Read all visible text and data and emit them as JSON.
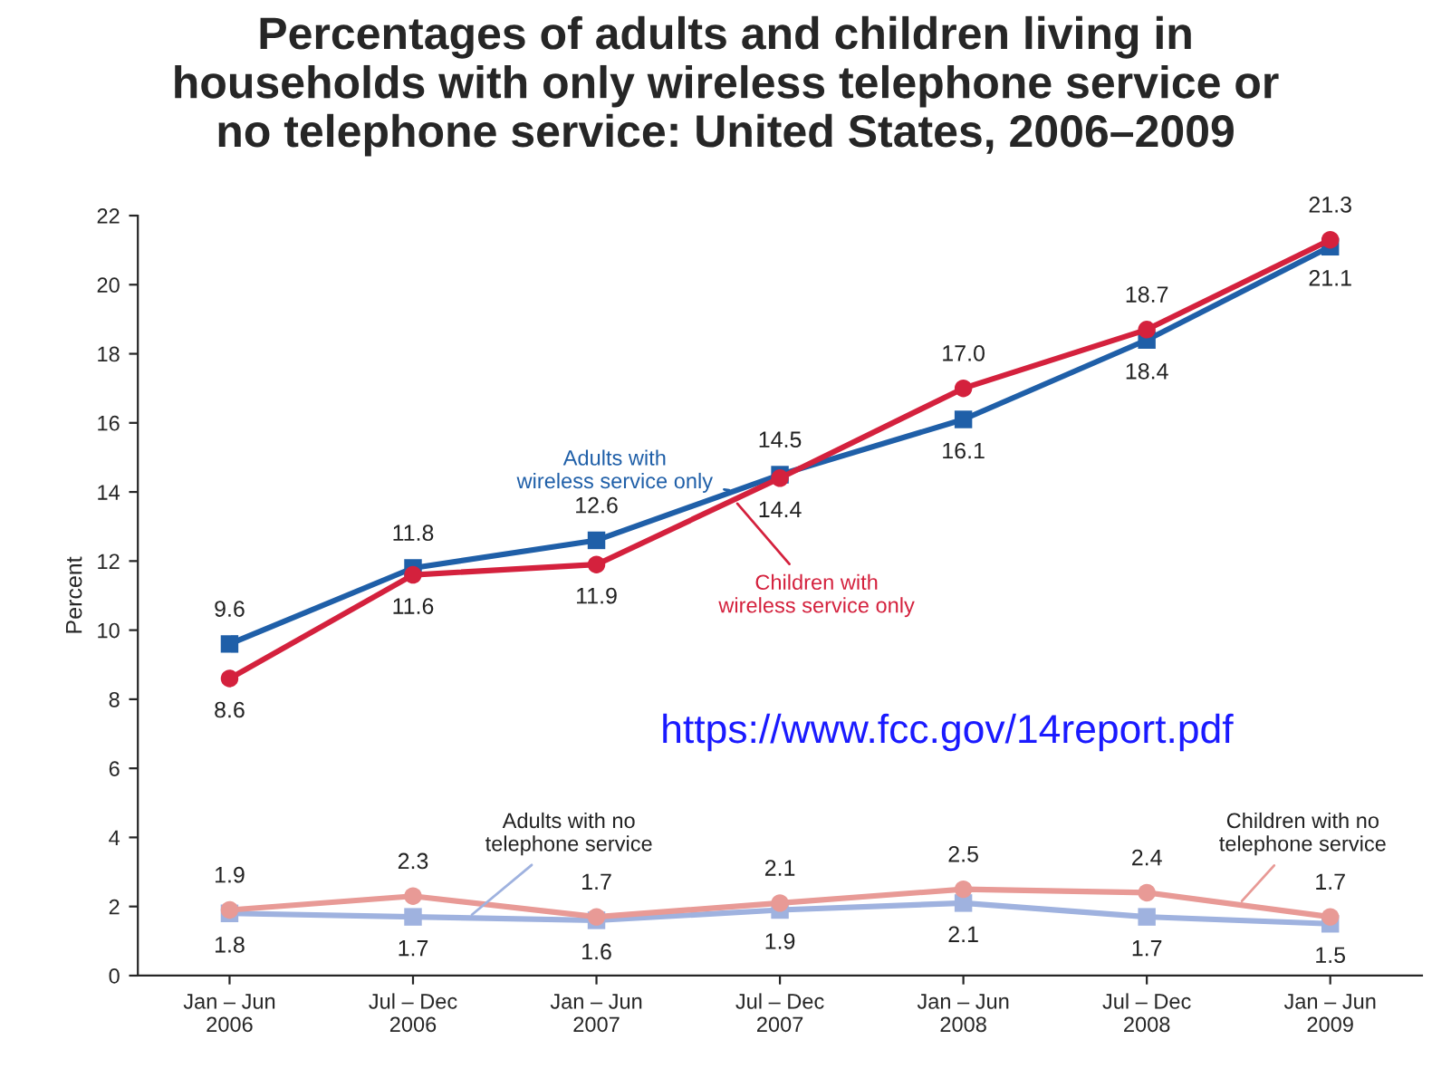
{
  "chart_data": {
    "type": "line",
    "title": "Percentages of adults and children living in\nhouseholds with only wireless telephone service or\nno telephone service: United States, 2006–2009",
    "ylabel": "Percent",
    "categories": [
      "Jan – Jun\n2006",
      "Jul – Dec\n2006",
      "Jan – Jun\n2007",
      "Jul – Dec\n2007",
      "Jan – Jun\n2008",
      "Jul – Dec\n2008",
      "Jan – Jun\n2009"
    ],
    "series": [
      {
        "name": "Adults with\nwireless service only",
        "color": "#1f5fa8",
        "marker": "square",
        "values": [
          9.6,
          11.8,
          12.6,
          14.5,
          16.1,
          18.4,
          21.1
        ],
        "value_labels": [
          "9.6",
          "11.8",
          "12.6",
          "14.5",
          "16.1",
          "18.4",
          "21.1"
        ]
      },
      {
        "name": "Children with\nwireless service only",
        "color": "#d4213d",
        "marker": "circle",
        "values": [
          8.6,
          11.6,
          11.9,
          14.4,
          17.0,
          18.7,
          21.3
        ],
        "value_labels": [
          "8.6",
          "11.6",
          "11.9",
          "14.4",
          "17.0",
          "18.7",
          "21.3"
        ]
      },
      {
        "name": "Adults with no\ntelephone service",
        "color": "#9fb2df",
        "marker": "square",
        "values": [
          1.8,
          1.7,
          1.6,
          1.9,
          2.1,
          1.7,
          1.5
        ],
        "value_labels": [
          "1.8",
          "1.7",
          "1.6",
          "1.9",
          "2.1",
          "1.7",
          "1.5"
        ]
      },
      {
        "name": "Children with no\ntelephone service",
        "color": "#e89a96",
        "marker": "circle",
        "values": [
          1.9,
          2.3,
          1.7,
          2.1,
          2.5,
          2.4,
          1.7
        ],
        "value_labels": [
          "1.9",
          "2.3",
          "1.7",
          "2.1",
          "2.5",
          "2.4",
          "1.7"
        ]
      }
    ],
    "ylim": [
      0,
      22
    ],
    "yticks": [
      0,
      2,
      4,
      6,
      8,
      10,
      12,
      14,
      16,
      18,
      20,
      22
    ],
    "grid": false,
    "legend": false,
    "line_style": "solid",
    "annotations": [
      "https://www.fcc.gov/14report.pdf"
    ]
  }
}
